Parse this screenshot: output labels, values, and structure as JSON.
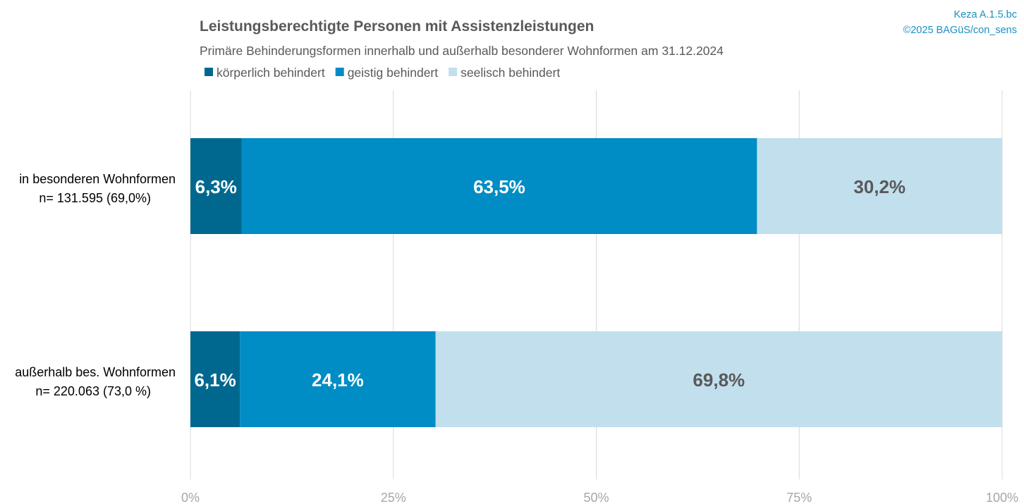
{
  "chart_data": {
    "type": "bar",
    "orientation": "horizontal",
    "stacked": true,
    "title": "Leistungsberechtigte Personen mit Assistenzleistungen",
    "subtitle": "Primäre Behinderungsformen innerhalb und außerhalb besonderer Wohnformen am 31.12.2024",
    "source": [
      "Keza A.1.5.bc",
      "©2025 BAGüS/con_sens"
    ],
    "categories": [
      [
        "in besonderen Wohnformen",
        "n= 131.595 (69,0%)"
      ],
      [
        "außerhalb bes. Wohnformen",
        "n= 220.063 (73,0 %)"
      ]
    ],
    "series": [
      {
        "name": "körperlich behindert",
        "color": "#00688f",
        "label_color": "#ffffff",
        "values": [
          6.3,
          6.1
        ],
        "labels": [
          "6,3%",
          "6,1%"
        ]
      },
      {
        "name": "geistig behindert",
        "color": "#008cc4",
        "label_color": "#ffffff",
        "values": [
          63.5,
          24.1
        ],
        "labels": [
          "63,5%",
          "24,1%"
        ]
      },
      {
        "name": "seelisch behindert",
        "color": "#c2dfed",
        "label_color": "#595959",
        "values": [
          30.2,
          69.8
        ],
        "labels": [
          "30,2%",
          "69,8%"
        ]
      }
    ],
    "xlim": [
      0,
      100
    ],
    "xticks": [
      0,
      25,
      50,
      75,
      100
    ],
    "xtick_labels": [
      "0%",
      "25%",
      "50%",
      "75%",
      "100%"
    ],
    "grid": true,
    "legend": "top"
  }
}
